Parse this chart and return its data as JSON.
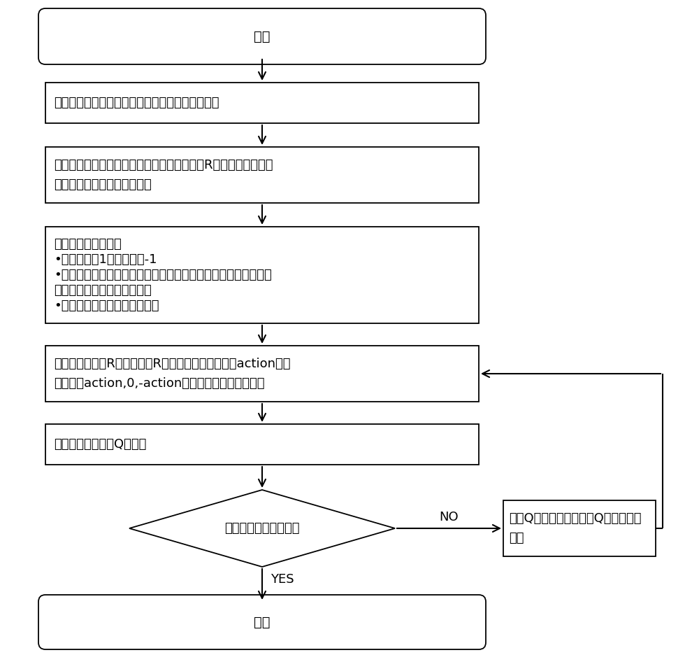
{
  "bg_color": "#ffffff",
  "box_edge_color": "#000000",
  "text_color": "#000000",
  "font_size": 14,
  "font_size_small": 13,
  "start_text": "开始",
  "end_text": "结束",
  "step1_text": "第一步：根据给定路径及精度要求建立规划误差带",
  "step2_line1": "第二步：基于误差带网格建立动态奖励值模型R规定向前为正，向",
  "step2_line2": "后为负，误差带之外为负无穷",
  "step3_title": "第三步：量化奖励值",
  "step3_b1": "•每向前动作1次，奖励值-1",
  "step3_b2": "•当前状态偏离路径中心值设为标量负奖励，当前状态所处位置距",
  "step3_b2b": "路径起点距离设为标量正奖励",
  "step3_b3": "•终点所处格子设为最大奖励值",
  "step4_line1": "第四步：设定与R关联的初始R矩阵，设定单位动作值action，建",
  "step4_line2": "立关于（action,0,-action）的动作矩阵，开始动作",
  "step5_text": "第五步：建立动态Q值矩阵",
  "diamond_text": "迭代次数到达设定上限",
  "retrain_line1": "按照Q学习更新策略更新Q矩阵，重新",
  "retrain_line2": "训练",
  "yes_label": "YES",
  "no_label": "NO"
}
